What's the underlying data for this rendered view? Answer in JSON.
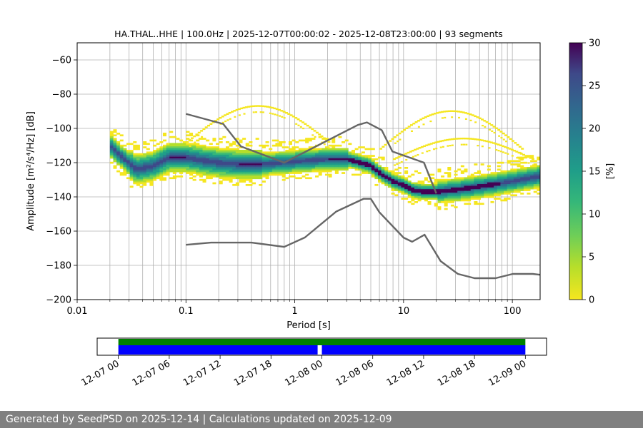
{
  "chart_data": {
    "type": "heatmap",
    "title": "HA.THAL..HHE | 100.0Hz | 2025-12-07T00:00:02 - 2025-12-08T23:00:00 | 93 segments",
    "xlabel": "Period [s]",
    "ylabel": "Amplitude [m²/s⁴/Hz] [dB]",
    "xscale": "log",
    "xlim": [
      0.01,
      180
    ],
    "ylim": [
      -200,
      -50
    ],
    "xticks": [
      0.01,
      0.1,
      1,
      10,
      100
    ],
    "xtick_labels": [
      "0.01",
      "0.1",
      "1",
      "10",
      "100"
    ],
    "yticks": [
      -200,
      -180,
      -160,
      -140,
      -120,
      -100,
      -80,
      -60
    ],
    "ytick_labels": [
      "−200",
      "−180",
      "−160",
      "−140",
      "−120",
      "−100",
      "−80",
      "−60"
    ],
    "grid": true,
    "colorbar": {
      "label": "[%]",
      "range": [
        0,
        30
      ],
      "ticks": [
        0,
        5,
        10,
        15,
        20,
        25,
        30
      ],
      "tick_labels": [
        "0",
        "5",
        "10",
        "15",
        "20",
        "25",
        "30"
      ],
      "colormap": "viridis_r"
    },
    "nhnm": {
      "name": "NHNM",
      "color": "#666666",
      "x": [
        0.1,
        0.22,
        0.32,
        0.8,
        3.8,
        4.6,
        6.3,
        7.9,
        15.4,
        20
      ],
      "y": [
        -91.5,
        -97.4,
        -110.5,
        -120,
        -98,
        -96.5,
        -101,
        -113.5,
        -120,
        -138
      ]
    },
    "nlnm": {
      "name": "NLNM",
      "color": "#666666",
      "x": [
        0.1,
        0.17,
        0.4,
        0.8,
        1.24,
        2.4,
        4.3,
        5,
        6,
        10,
        12,
        15.6,
        21.9,
        31.6,
        45,
        70,
        101,
        154,
        180
      ],
      "y": [
        -168,
        -166.7,
        -166.7,
        -169.2,
        -163.7,
        -148.6,
        -141.1,
        -141.1,
        -149,
        -163.8,
        -166.2,
        -162.1,
        -177.5,
        -185,
        -187.5,
        -187.5,
        -185,
        -185,
        -185.5
      ]
    },
    "psd_mode": {
      "x": [
        0.02,
        0.025,
        0.035,
        0.05,
        0.07,
        0.1,
        0.15,
        0.2,
        0.3,
        0.5,
        0.8,
        1.2,
        2,
        3,
        4,
        5,
        6,
        8,
        10,
        12,
        15,
        20,
        30,
        50,
        80,
        120,
        180
      ],
      "y": [
        -110,
        -116,
        -124,
        -122,
        -117,
        -117,
        -119,
        -120,
        -121,
        -121,
        -120,
        -119,
        -118,
        -118,
        -120,
        -122,
        -126,
        -131,
        -133,
        -136,
        -137,
        -137,
        -136,
        -134,
        -132,
        -130,
        -128
      ]
    }
  },
  "timeline": {
    "tick_labels": [
      "12-07 00",
      "12-07 06",
      "12-07 12",
      "12-07 18",
      "12-08 00",
      "12-08 06",
      "12-08 12",
      "12-08 18",
      "12-09 00"
    ],
    "span_hours": [
      -2.5,
      50.5
    ],
    "coverage_green": [
      [
        0,
        48
      ]
    ],
    "coverage_blue": [
      [
        0,
        23.5
      ],
      [
        24,
        48
      ]
    ],
    "green_color": "#008000",
    "blue_color": "#0000ff"
  },
  "footer": {
    "text": "Generated by SeedPSD on 2025-12-14 | Calculations updated on 2025-12-09"
  }
}
